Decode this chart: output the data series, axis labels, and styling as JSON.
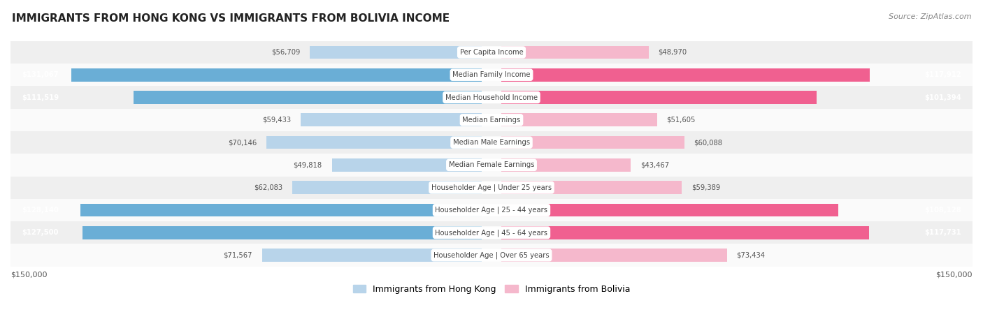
{
  "title": "IMMIGRANTS FROM HONG KONG VS IMMIGRANTS FROM BOLIVIA INCOME",
  "source": "Source: ZipAtlas.com",
  "categories": [
    "Per Capita Income",
    "Median Family Income",
    "Median Household Income",
    "Median Earnings",
    "Median Male Earnings",
    "Median Female Earnings",
    "Householder Age | Under 25 years",
    "Householder Age | 25 - 44 years",
    "Householder Age | 45 - 64 years",
    "Householder Age | Over 65 years"
  ],
  "hong_kong_values": [
    56709,
    131067,
    111519,
    59433,
    70146,
    49818,
    62083,
    128140,
    127500,
    71567
  ],
  "bolivia_values": [
    48970,
    117912,
    101394,
    51605,
    60088,
    43467,
    59389,
    108128,
    117731,
    73434
  ],
  "hong_kong_color_light": "#b8d4ea",
  "bolivia_color_light": "#f5b8cc",
  "hong_kong_color_full": "#6aaed6",
  "bolivia_color_full": "#f06090",
  "max_value": 150000,
  "x_axis_label_left": "$150,000",
  "x_axis_label_right": "$150,000",
  "legend_hk": "Immigrants from Hong Kong",
  "legend_bo": "Immigrants from Bolivia",
  "row_bg_even": "#efefef",
  "row_bg_odd": "#fafafa",
  "label_inside_color": "#ffffff",
  "label_outside_color": "#555555",
  "center_label_color": "#444444",
  "full_threshold": 100000
}
